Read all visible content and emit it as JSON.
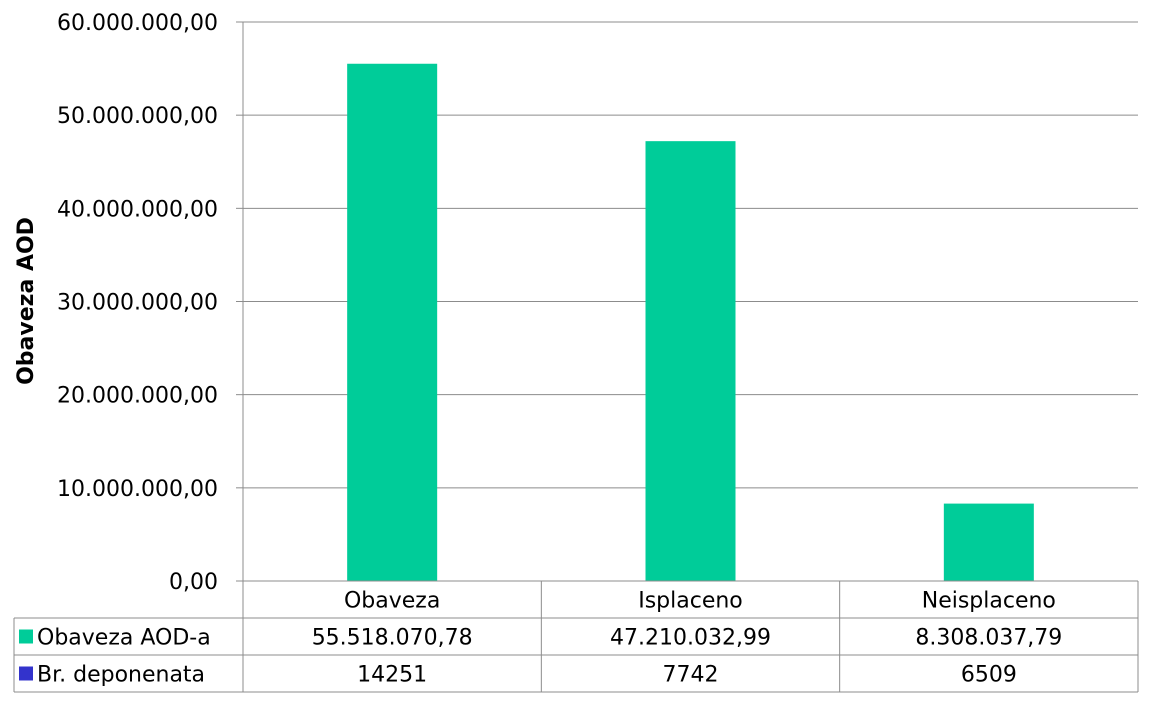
{
  "chart_data": {
    "type": "bar",
    "categories": [
      "Obaveza",
      "Isplaceno",
      "Neisplaceno"
    ],
    "ylabel": "Obaveza AOD",
    "ylim": [
      0,
      60000000
    ],
    "y_ticks": [
      0,
      10000000,
      20000000,
      30000000,
      40000000,
      50000000,
      60000000
    ],
    "y_tick_labels": [
      "0,00",
      "10.000.000,00",
      "20.000.000,00",
      "30.000.000,00",
      "40.000.000,00",
      "50.000.000,00",
      "60.000.000,00"
    ],
    "grid": true,
    "legend": "data-table",
    "series": [
      {
        "name": "Obaveza AOD-a",
        "color": "#00cc99",
        "values": [
          55518070.78,
          47210032.99,
          8308037.79
        ],
        "labels": [
          "55.518.070,78",
          "47.210.032,99",
          "8.308.037,79"
        ]
      },
      {
        "name": "Br. deponenata",
        "color": "#3333cc",
        "values": [
          14251,
          7742,
          6509
        ],
        "labels": [
          "14251",
          "7742",
          "6509"
        ]
      }
    ]
  }
}
